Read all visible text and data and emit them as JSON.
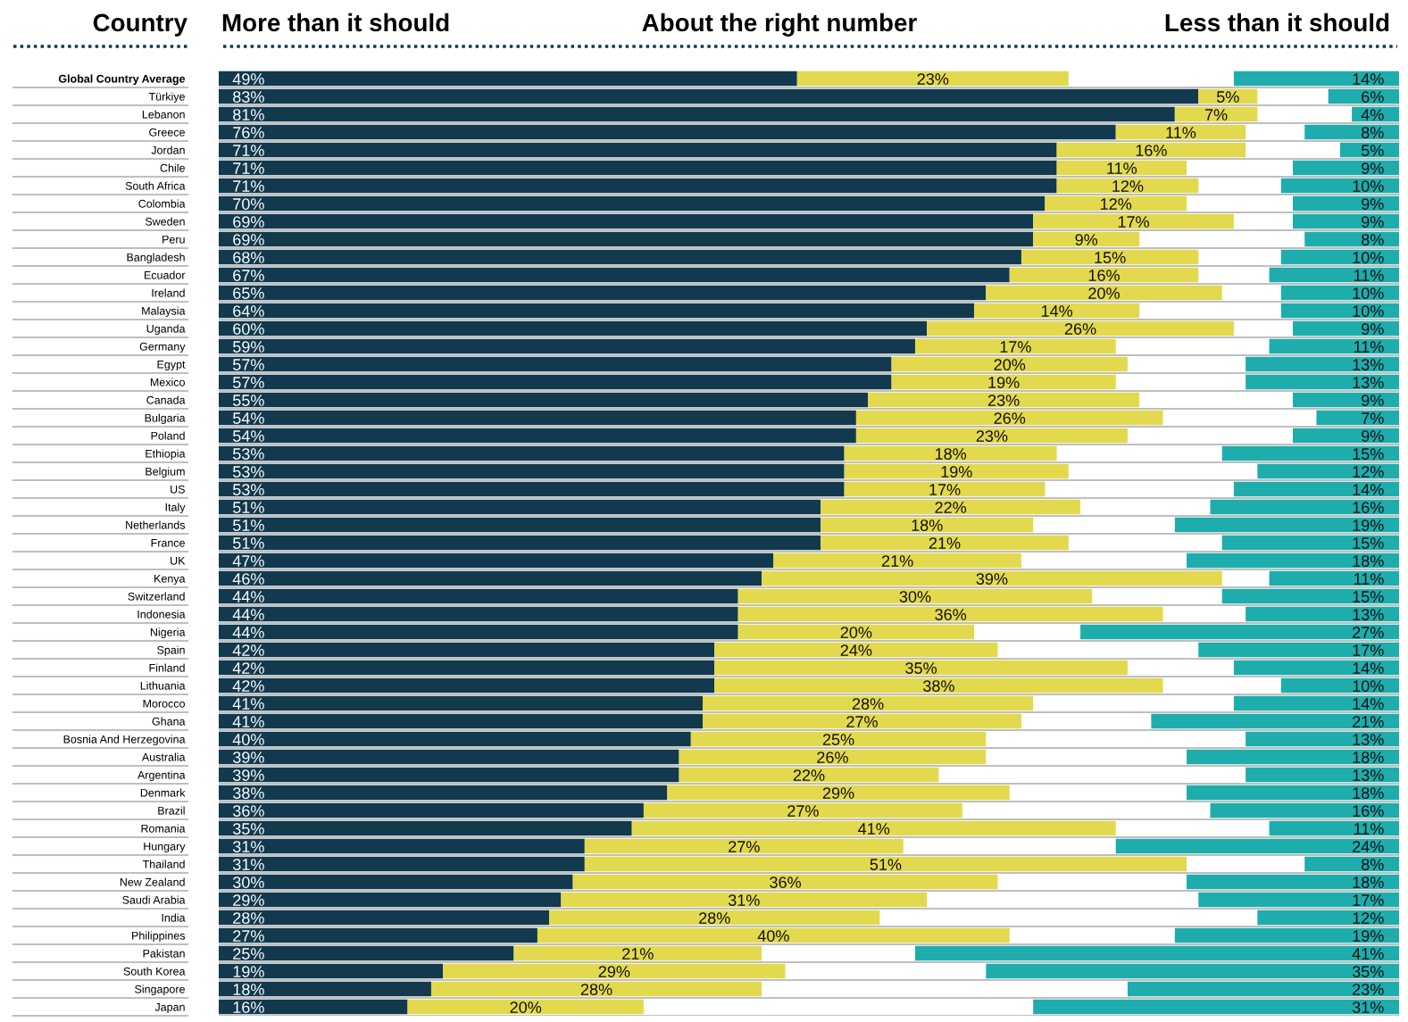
{
  "chart_data": [
    {
      "type": "bar",
      "orientation": "horizontal",
      "stacked": true,
      "ylabel": "Country",
      "legend": "top",
      "grid": "y",
      "tick_labels": "y",
      "xlim": [
        0,
        100
      ],
      "categories": [
        "Global Country Average",
        "Türkiye",
        "Lebanon",
        "Greece",
        "Jordan",
        "Chile",
        "South Africa",
        "Colombia",
        "Sweden",
        "Peru",
        "Bangladesh",
        "Ecuador",
        "Ireland",
        "Malaysia",
        "Uganda",
        "Germany",
        "Egypt",
        "Mexico",
        "Canada",
        "Bulgaria",
        "Poland",
        "Ethiopia",
        "Belgium",
        "US",
        "Italy",
        "Netherlands",
        "France",
        "UK",
        "Kenya",
        "Switzerland",
        "Indonesia",
        "Nigeria",
        "Spain",
        "Finland",
        "Lithuania",
        "Morocco",
        "Ghana",
        "Bosnia And Herzegovina",
        "Australia",
        "Argentina",
        "Denmark",
        "Brazil",
        "Romania",
        "Hungary",
        "Thailand",
        "New Zealand",
        "Saudi Arabia",
        "India",
        "Philippines",
        "Pakistan",
        "South Korea",
        "Singapore",
        "Japan"
      ],
      "series": [
        {
          "name": "More than it should",
          "color": "#12394d",
          "values": [
            49,
            83,
            81,
            76,
            71,
            71,
            71,
            70,
            69,
            69,
            68,
            67,
            65,
            64,
            60,
            59,
            57,
            57,
            55,
            54,
            54,
            53,
            53,
            53,
            51,
            51,
            51,
            47,
            46,
            44,
            44,
            44,
            42,
            42,
            42,
            41,
            41,
            40,
            39,
            39,
            38,
            36,
            35,
            31,
            31,
            30,
            29,
            28,
            27,
            25,
            19,
            18,
            16
          ],
          "value_labels": [
            "49%",
            "83%",
            "81%",
            "76%",
            "71%",
            "71%",
            "71%",
            "70%",
            "69%",
            "69%",
            "68%",
            "67%",
            "65%",
            "64%",
            "60%",
            "59%",
            "57%",
            "57%",
            "55%",
            "54%",
            "54%",
            "53%",
            "53%",
            "53%",
            "51%",
            "51%",
            "51%",
            "47%",
            "46%",
            "44%",
            "44%",
            "44%",
            "42%",
            "42%",
            "42%",
            "41%",
            "41%",
            "40%",
            "39%",
            "39%",
            "38%",
            "36%",
            "35%",
            "31%",
            "31%",
            "30%",
            "29%",
            "28%",
            "27%",
            "25%",
            "19%",
            "18%",
            "16%"
          ]
        },
        {
          "name": "About the right number",
          "color": "#e2d94f",
          "values": [
            23,
            5,
            7,
            11,
            16,
            11,
            12,
            12,
            17,
            9,
            15,
            16,
            20,
            14,
            26,
            17,
            20,
            19,
            23,
            26,
            23,
            18,
            19,
            17,
            22,
            18,
            21,
            21,
            39,
            30,
            36,
            20,
            24,
            35,
            38,
            28,
            27,
            25,
            26,
            22,
            29,
            27,
            41,
            27,
            51,
            36,
            31,
            28,
            40,
            21,
            29,
            28,
            20
          ],
          "value_labels": [
            "23%",
            "5%",
            "7%",
            "11%",
            "16%",
            "11%",
            "12%",
            "12%",
            "17%",
            "9%",
            "15%",
            "16%",
            "20%",
            "14%",
            "26%",
            "17%",
            "20%",
            "19%",
            "23%",
            "26%",
            "23%",
            "18%",
            "19%",
            "17%",
            "22%",
            "18%",
            "21%",
            "21%",
            "39%",
            "30%",
            "36%",
            "20%",
            "24%",
            "35%",
            "38%",
            "28%",
            "27%",
            "25%",
            "26%",
            "22%",
            "29%",
            "27%",
            "41%",
            "27%",
            "51%",
            "36%",
            "31%",
            "28%",
            "40%",
            "21%",
            "29%",
            "28%",
            "20%"
          ]
        }
      ]
    },
    {
      "type": "bar",
      "orientation": "horizontal",
      "legend": "top",
      "tick_labels": false,
      "xlim": [
        100,
        0
      ],
      "categories": [
        null,
        null,
        null,
        null,
        null,
        null,
        null,
        null,
        null,
        null,
        null,
        null,
        null,
        null,
        null,
        null,
        null,
        null,
        null,
        null,
        null,
        null,
        null,
        null,
        null,
        null,
        null,
        null,
        null,
        null,
        null,
        null,
        null,
        null,
        null,
        null,
        null,
        null,
        null,
        null,
        null,
        null,
        null,
        null,
        null,
        null,
        null,
        null,
        null,
        null,
        null,
        null,
        null
      ],
      "series": [
        {
          "name": "Less than it should",
          "color": "#1eadac",
          "values": [
            14,
            6,
            4,
            8,
            5,
            9,
            10,
            9,
            9,
            8,
            10,
            11,
            10,
            10,
            9,
            11,
            13,
            13,
            9,
            7,
            9,
            15,
            12,
            14,
            16,
            19,
            15,
            18,
            11,
            15,
            13,
            27,
            17,
            14,
            10,
            14,
            21,
            13,
            18,
            13,
            18,
            16,
            11,
            24,
            8,
            18,
            17,
            12,
            19,
            41,
            35,
            23,
            31
          ],
          "value_labels": [
            "14%",
            "6%",
            "4%",
            "8%",
            "5%",
            "9%",
            "10%",
            "9%",
            "9%",
            "8%",
            "10%",
            "11%",
            "10%",
            "10%",
            "9%",
            "11%",
            "13%",
            "13%",
            "9%",
            "7%",
            "9%",
            "15%",
            "12%",
            "14%",
            "16%",
            "19%",
            "15%",
            "18%",
            "11%",
            "15%",
            "13%",
            "27%",
            "17%",
            "14%",
            "10%",
            "14%",
            "21%",
            "13%",
            "18%",
            "13%",
            "18%",
            "16%",
            "11%",
            "24%",
            "8%",
            "18%",
            "17%",
            "12%",
            "19%",
            "41%",
            "35%",
            "23%",
            "31%"
          ]
        }
      ]
    }
  ]
}
